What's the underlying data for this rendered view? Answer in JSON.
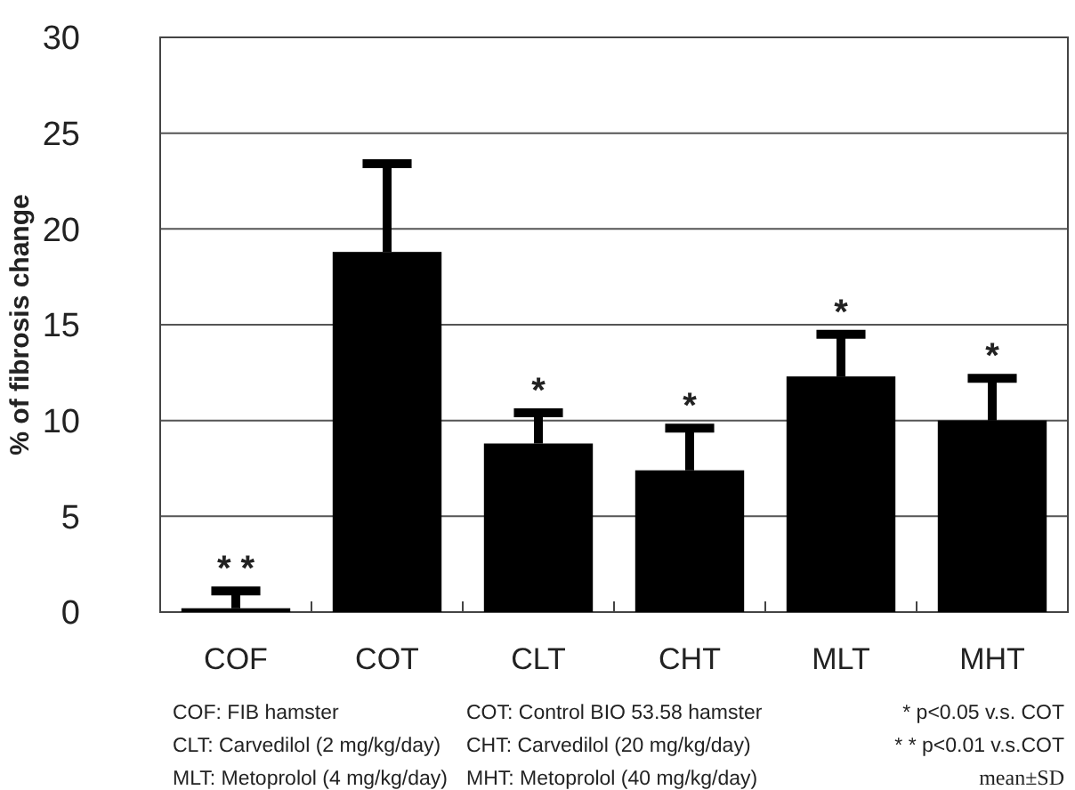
{
  "chart_data": {
    "type": "bar",
    "ylabel": "% of fibrosis change",
    "categories": [
      "COF",
      "COT",
      "CLT",
      "CHT",
      "MLT",
      "MHT"
    ],
    "values": [
      0.2,
      18.8,
      8.8,
      7.4,
      12.3,
      10.0
    ],
    "errors": [
      [
        0.2,
        1.1
      ],
      [
        18.8,
        23.4
      ],
      [
        8.8,
        10.4
      ],
      [
        7.4,
        9.6
      ],
      [
        12.3,
        14.5
      ],
      [
        10.0,
        12.2
      ]
    ],
    "color": "#000000",
    "ylim": [
      0,
      30
    ],
    "yticks": [
      0,
      5,
      10,
      15,
      20,
      25,
      30
    ],
    "grid": "y",
    "annotations": [
      {
        "text": "* *",
        "x": "COF",
        "y": 1.1
      },
      {
        "text": "*",
        "x": "CLT",
        "y": 10.4
      },
      {
        "text": "*",
        "x": "CHT",
        "y": 9.6
      },
      {
        "text": "*",
        "x": "MLT",
        "y": 14.5
      },
      {
        "text": "*",
        "x": "MHT",
        "y": 12.2
      },
      "COF: FIB hamster",
      "COT: Control BIO 53.58 hamster",
      "* p<0.05 v.s. COT",
      "CLT: Carvedilol (2 mg/kg/day)",
      "CHT: Carvedilol (20 mg/kg/day)",
      "* * p<0.01 v.s.COT",
      "MLT: Metoprolol (4 mg/kg/day)",
      "MHT: Metoprolol (40 mg/kg/day)",
      "mean±SD"
    ]
  }
}
